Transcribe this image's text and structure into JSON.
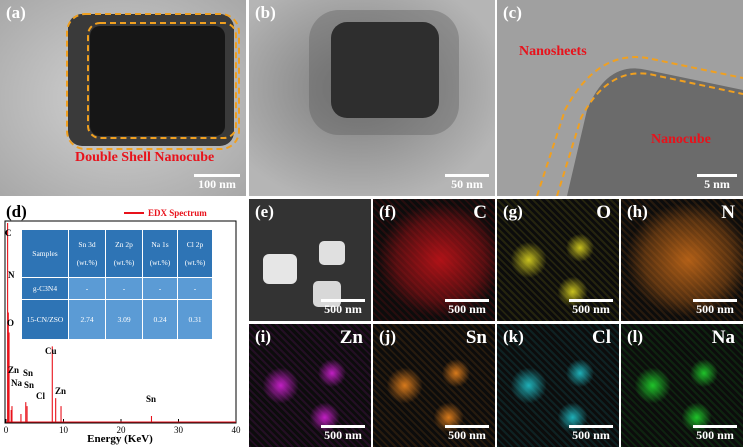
{
  "panels": {
    "a": {
      "label": "(a)",
      "annotation": "Double Shell Nanocube",
      "scale": "100 nm"
    },
    "b": {
      "label": "(b)",
      "scale": "50 nm"
    },
    "c": {
      "label": "(c)",
      "annotation_top": "Nanosheets",
      "annotation_bottom": "Nanocube",
      "scale": "5 nm"
    },
    "d": {
      "label": "(d)",
      "legend": "EDX Spectrum",
      "xlabel": "Energy (KeV)",
      "peak_labels": [
        "C",
        "N",
        "O",
        "Cu",
        "Zn",
        "Sn",
        "Na",
        "Sn",
        "Cl",
        "Zn",
        "Sn"
      ]
    },
    "e": {
      "label": "(e)",
      "scale": "500 nm"
    },
    "f": {
      "label": "(f)",
      "element": "C",
      "scale": "500 nm"
    },
    "g": {
      "label": "(g)",
      "element": "O",
      "scale": "500 nm"
    },
    "h": {
      "label": "(h)",
      "element": "N",
      "scale": "500 nm"
    },
    "i": {
      "label": "(i)",
      "element": "Zn",
      "scale": "500 nm"
    },
    "j": {
      "label": "(j)",
      "element": "Sn",
      "scale": "500 nm"
    },
    "k": {
      "label": "(k)",
      "element": "Cl",
      "scale": "500 nm"
    },
    "l": {
      "label": "(l)",
      "element": "Na",
      "scale": "500 nm"
    }
  },
  "colors": {
    "f": "#d5141a",
    "g": "#c9c21f",
    "h": "#d8731a",
    "i": "#c21fc4",
    "j": "#d87a1c",
    "k": "#1fb0b8",
    "l": "#1fc42a"
  },
  "table": {
    "headers": [
      {
        "line1": "Samples",
        "line2": ""
      },
      {
        "line1": "Sn 3d",
        "line2": "(wt.%)"
      },
      {
        "line1": "Zn 2p",
        "line2": "(wt.%)"
      },
      {
        "line1": "Na 1s",
        "line2": "(wt.%)"
      },
      {
        "line1": "Cl 2p",
        "line2": "(wt.%)"
      }
    ],
    "rows": [
      [
        "g-C3N4",
        "-",
        "-",
        "-",
        "-"
      ],
      [
        "15-CN/ZSO",
        "2.74",
        "3.09",
        "0.24",
        "0.31"
      ]
    ]
  },
  "chart_data": {
    "type": "line",
    "title": "",
    "xlabel": "Energy (KeV)",
    "ylabel": "",
    "xlim": [
      0,
      40
    ],
    "x_ticks": [
      0,
      10,
      20,
      30,
      40
    ],
    "series": [
      {
        "name": "EDX Spectrum",
        "x": [
          0,
          0.28,
          0.4,
          0.53,
          0.9,
          1.04,
          2.6,
          3.44,
          3.66,
          8.05,
          8.64,
          9.57,
          25.3,
          40
        ],
        "y": [
          0,
          1.0,
          0.55,
          0.45,
          0.06,
          0.08,
          0.04,
          0.1,
          0.08,
          0.38,
          0.12,
          0.08,
          0.03,
          0
        ]
      }
    ]
  }
}
